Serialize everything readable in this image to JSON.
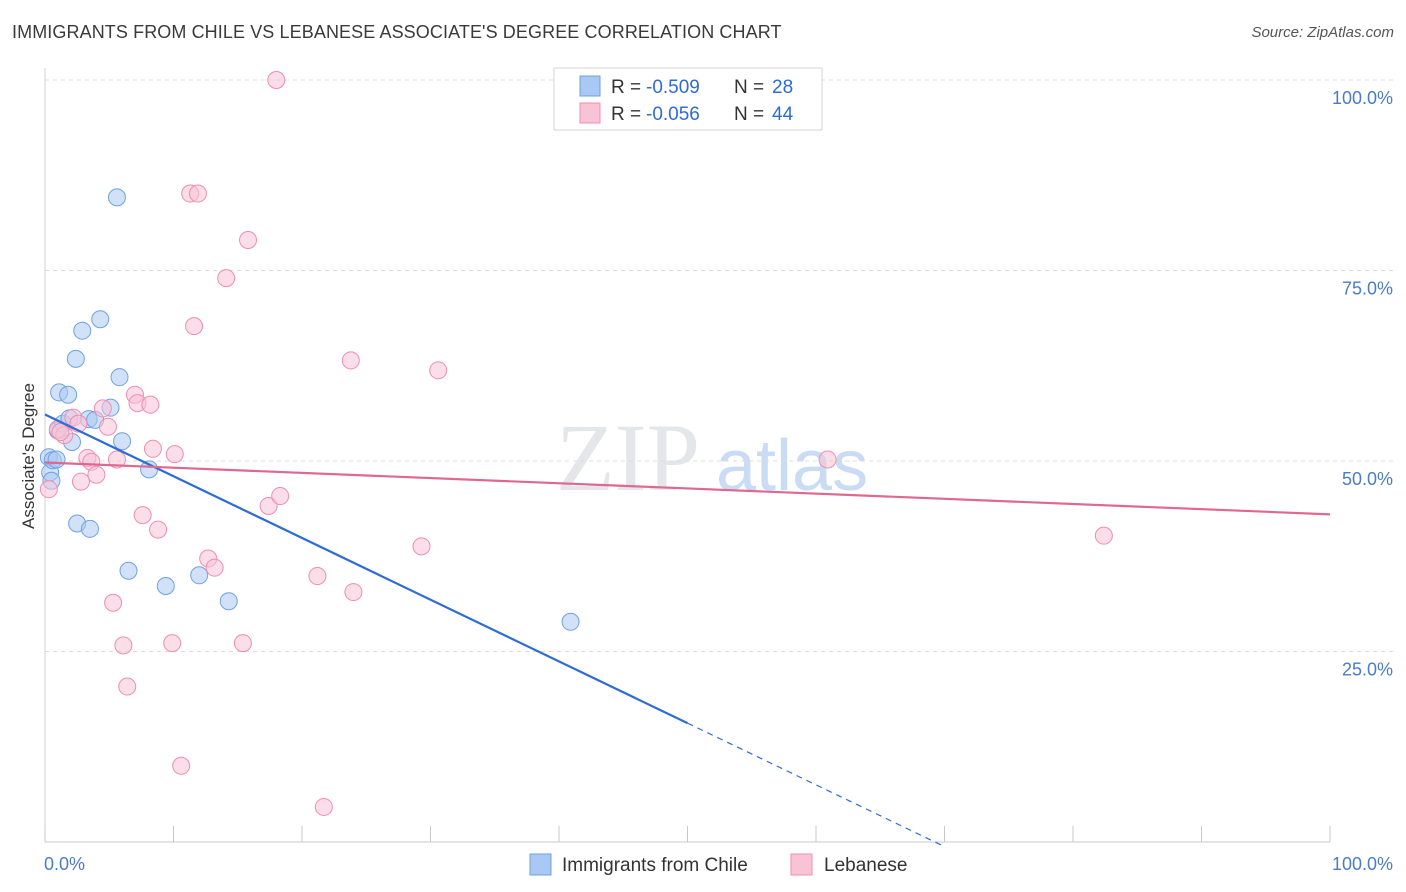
{
  "title": "IMMIGRANTS FROM CHILE VS LEBANESE ASSOCIATE'S DEGREE CORRELATION CHART",
  "source": "Source: ZipAtlas.com",
  "chart_data": {
    "type": "scatter",
    "ylabel": "Associate's Degree",
    "xlim": [
      0,
      100
    ],
    "ylim": [
      0,
      100
    ],
    "x_tick_labels": [
      "0.0%",
      "100.0%"
    ],
    "y_ticks": [
      {
        "value": 100,
        "label": "100.0%"
      },
      {
        "value": 75,
        "label": "75.0%"
      },
      {
        "value": 50,
        "label": "50.0%"
      },
      {
        "value": 25,
        "label": "25.0%"
      }
    ],
    "grid": true,
    "watermark": {
      "zip": "ZIP",
      "atlas": "atlas"
    },
    "legend": {
      "placement": "top-center",
      "entries": [
        {
          "r_label": "R =",
          "r_value": "-0.509",
          "n_label": "N =",
          "n_value": "28",
          "color": "#6fa0e6"
        },
        {
          "r_label": "R =",
          "r_value": "-0.056",
          "n_label": "N =",
          "n_value": "44",
          "color": "#f08db0"
        }
      ]
    },
    "series": [
      {
        "name": "Immigrants from Chile",
        "color": "#6fa0e6",
        "fill": "#a9c8f3",
        "line_color": "#2f6bd6",
        "trend": {
          "x0": 0,
          "y0": 56.1,
          "x1": 50,
          "y1": 15.6,
          "dash_to_x": 70,
          "dash_to_y": -0.6
        },
        "points": [
          [
            0.3,
            50.5
          ],
          [
            0.4,
            48.5
          ],
          [
            0.5,
            47.4
          ],
          [
            0.6,
            50.1
          ],
          [
            1.0,
            54.0
          ],
          [
            1.1,
            59.0
          ],
          [
            1.4,
            54.9
          ],
          [
            1.8,
            58.7
          ],
          [
            1.9,
            55.6
          ],
          [
            2.1,
            52.5
          ],
          [
            2.5,
            41.8
          ],
          [
            2.9,
            67.1
          ],
          [
            2.4,
            63.4
          ],
          [
            3.4,
            55.5
          ],
          [
            3.5,
            41.1
          ],
          [
            3.9,
            55.4
          ],
          [
            4.3,
            68.6
          ],
          [
            5.1,
            57.0
          ],
          [
            5.6,
            84.6
          ],
          [
            5.8,
            61.0
          ],
          [
            6.0,
            52.6
          ],
          [
            6.5,
            35.6
          ],
          [
            8.1,
            48.9
          ],
          [
            9.4,
            33.6
          ],
          [
            12.0,
            35.0
          ],
          [
            14.3,
            31.6
          ],
          [
            40.9,
            28.9
          ],
          [
            0.9,
            50.2
          ]
        ]
      },
      {
        "name": "Lebanese",
        "color": "#f08db0",
        "fill": "#f7c3d5",
        "line_color": "#e06890",
        "trend": {
          "x0": 0,
          "y0": 49.8,
          "x1": 100,
          "y1": 43.0
        },
        "points": [
          [
            0.3,
            46.3
          ],
          [
            1.0,
            54.2
          ],
          [
            1.5,
            53.4
          ],
          [
            2.2,
            55.7
          ],
          [
            2.8,
            47.3
          ],
          [
            3.3,
            50.4
          ],
          [
            3.6,
            49.9
          ],
          [
            4.0,
            48.2
          ],
          [
            4.5,
            56.9
          ],
          [
            4.9,
            54.5
          ],
          [
            5.3,
            31.4
          ],
          [
            5.6,
            50.2
          ],
          [
            6.1,
            25.8
          ],
          [
            6.4,
            20.4
          ],
          [
            7.0,
            58.7
          ],
          [
            7.2,
            57.6
          ],
          [
            7.6,
            42.9
          ],
          [
            8.2,
            57.4
          ],
          [
            8.4,
            51.6
          ],
          [
            8.8,
            41.0
          ],
          [
            9.9,
            26.1
          ],
          [
            10.1,
            50.9
          ],
          [
            10.6,
            10.0
          ],
          [
            11.3,
            85.1
          ],
          [
            11.9,
            85.1
          ],
          [
            11.6,
            67.7
          ],
          [
            12.7,
            37.2
          ],
          [
            13.2,
            36.0
          ],
          [
            14.1,
            74.0
          ],
          [
            15.4,
            26.1
          ],
          [
            15.8,
            79.0
          ],
          [
            17.4,
            44.1
          ],
          [
            18.0,
            100.0
          ],
          [
            18.3,
            45.4
          ],
          [
            21.2,
            34.9
          ],
          [
            21.7,
            4.6
          ],
          [
            23.8,
            63.2
          ],
          [
            24.0,
            32.8
          ],
          [
            29.3,
            38.8
          ],
          [
            30.6,
            61.9
          ],
          [
            60.9,
            50.2
          ],
          [
            82.4,
            40.2
          ],
          [
            2.6,
            54.9
          ],
          [
            1.2,
            53.8
          ]
        ]
      }
    ]
  }
}
